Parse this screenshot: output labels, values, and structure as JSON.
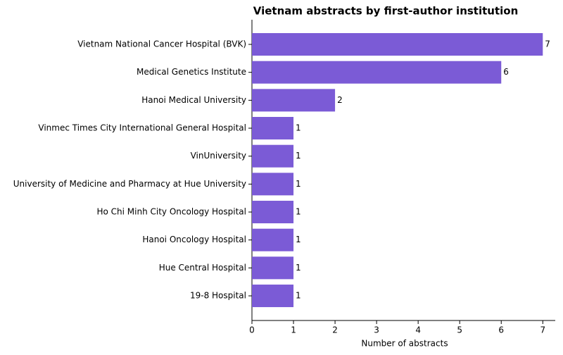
{
  "chart_data": {
    "type": "barh",
    "title": "Vietnam abstracts by first-author institution",
    "xlabel": "Number of abstracts",
    "categories": [
      "Vietnam National Cancer Hospital (BVK)",
      "Medical Genetics Institute",
      "Hanoi Medical University",
      "Vinmec Times City International General Hospital",
      "VinUniversity",
      "University of Medicine and Pharmacy at Hue University",
      "Ho Chi Minh City Oncology Hospital",
      "Hanoi Oncology Hospital",
      "Hue Central Hospital",
      "19-8 Hospital"
    ],
    "values": [
      7,
      6,
      2,
      1,
      1,
      1,
      1,
      1,
      1,
      1
    ],
    "color": "#7b5bd6",
    "xlim": [
      0,
      7.3
    ],
    "xticks": [
      0,
      1,
      2,
      3,
      4,
      5,
      6,
      7
    ],
    "grid": false
  }
}
